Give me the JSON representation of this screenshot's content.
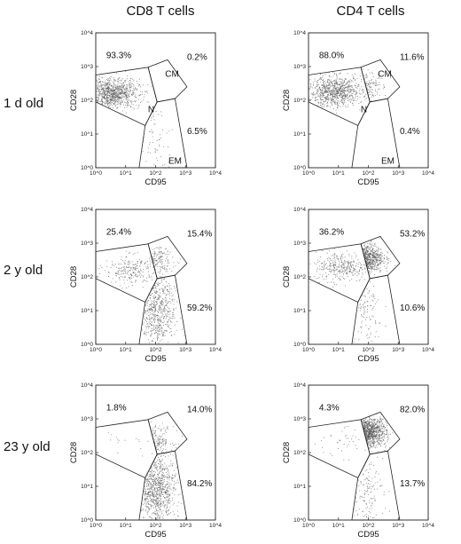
{
  "figure": {
    "columns": [
      "CD8 T cells",
      "CD4 T cells"
    ],
    "rows": [
      "1 d old",
      "2 y old",
      "23 y old"
    ],
    "x_axis_label": "CD95",
    "y_axis_label": "CD28",
    "x_ticks": [
      "10^0",
      "10^1",
      "10^2",
      "10^3",
      "10^4"
    ],
    "y_ticks": [
      "10^0",
      "10^1",
      "10^2",
      "10^3",
      "10^4"
    ]
  },
  "panels": [
    {
      "column": "CD8 T cells",
      "row": "1 d old",
      "gate_labels": {
        "cm": "CM",
        "n": "N",
        "em": "EM"
      },
      "naive_pct": "93.3%",
      "cm_pct": "0.2%",
      "em_pct": "6.5%",
      "populations": [
        {
          "gate": "naive",
          "fraction": 0.933,
          "center_x": 0.55,
          "center_y": 2.2
        },
        {
          "gate": "em",
          "fraction": 0.065,
          "center_x": 2.0,
          "center_y": 0.8
        }
      ]
    },
    {
      "column": "CD4 T cells",
      "row": "1 d old",
      "gate_labels": {
        "cm": "CM",
        "n": "N",
        "em": "EM"
      },
      "naive_pct": "88.0%",
      "cm_pct": "11.6%",
      "em_pct": "0.4%",
      "populations": [
        {
          "gate": "naive",
          "fraction": 0.88,
          "center_x": 0.9,
          "center_y": 2.25
        },
        {
          "gate": "cm",
          "fraction": 0.116,
          "center_x": 1.75,
          "center_y": 2.4
        }
      ]
    },
    {
      "column": "CD8 T cells",
      "row": "2 y old",
      "gate_labels": {},
      "naive_pct": "25.4%",
      "cm_pct": "15.4%",
      "em_pct": "59.2%",
      "populations": [
        {
          "gate": "naive",
          "fraction": 0.254,
          "center_x": 1.2,
          "center_y": 2.2
        },
        {
          "gate": "cm",
          "fraction": 0.154,
          "center_x": 2.0,
          "center_y": 2.45
        },
        {
          "gate": "em",
          "fraction": 0.592,
          "center_x": 2.05,
          "center_y": 1.0
        }
      ]
    },
    {
      "column": "CD4 T cells",
      "row": "2 y old",
      "gate_labels": {},
      "naive_pct": "36.2%",
      "cm_pct": "53.2%",
      "em_pct": "10.6%",
      "populations": [
        {
          "gate": "naive",
          "fraction": 0.362,
          "center_x": 1.1,
          "center_y": 2.3
        },
        {
          "gate": "cm",
          "fraction": 0.532,
          "center_x": 1.9,
          "center_y": 2.55
        },
        {
          "gate": "em",
          "fraction": 0.106,
          "center_x": 1.9,
          "center_y": 0.9
        }
      ]
    },
    {
      "column": "CD8 T cells",
      "row": "23 y old",
      "gate_labels": {},
      "naive_pct": "1.8%",
      "cm_pct": "14.0%",
      "em_pct": "84.2%",
      "populations": [
        {
          "gate": "naive",
          "fraction": 0.018,
          "center_x": 1.2,
          "center_y": 2.3
        },
        {
          "gate": "cm",
          "fraction": 0.14,
          "center_x": 2.0,
          "center_y": 2.35
        },
        {
          "gate": "em",
          "fraction": 0.842,
          "center_x": 2.05,
          "center_y": 0.9
        }
      ]
    },
    {
      "column": "CD4 T cells",
      "row": "23 y old",
      "gate_labels": {},
      "naive_pct": "4.3%",
      "cm_pct": "82.0%",
      "em_pct": "13.7%",
      "populations": [
        {
          "gate": "naive",
          "fraction": 0.043,
          "center_x": 1.0,
          "center_y": 2.3
        },
        {
          "gate": "cm",
          "fraction": 0.82,
          "center_x": 2.0,
          "center_y": 2.6
        },
        {
          "gate": "em",
          "fraction": 0.137,
          "center_x": 1.9,
          "center_y": 0.9
        }
      ]
    }
  ]
}
